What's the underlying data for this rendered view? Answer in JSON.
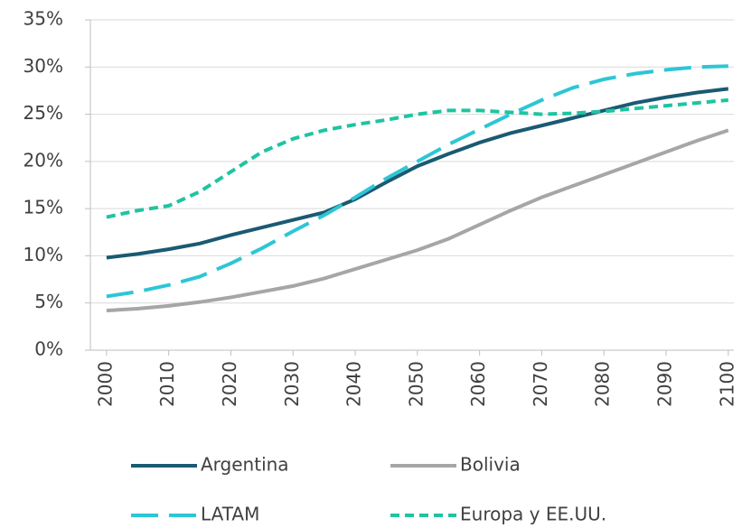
{
  "chart_data": {
    "type": "line",
    "x": [
      2000,
      2005,
      2010,
      2015,
      2020,
      2025,
      2030,
      2035,
      2040,
      2045,
      2050,
      2055,
      2060,
      2065,
      2070,
      2075,
      2080,
      2085,
      2090,
      2095,
      2100
    ],
    "series": [
      {
        "name": "Argentina",
        "color": "#1a5a73",
        "dash": "solid",
        "values": [
          9.8,
          10.2,
          10.7,
          11.3,
          12.2,
          13.0,
          13.8,
          14.6,
          16.0,
          17.8,
          19.5,
          20.8,
          22.0,
          23.0,
          23.8,
          24.6,
          25.4,
          26.2,
          26.8,
          27.3,
          27.7
        ]
      },
      {
        "name": "Bolivia",
        "color": "#a6a6a6",
        "dash": "solid",
        "values": [
          4.2,
          4.4,
          4.7,
          5.1,
          5.6,
          6.2,
          6.8,
          7.6,
          8.6,
          9.6,
          10.6,
          11.8,
          13.3,
          14.8,
          16.2,
          17.4,
          18.6,
          19.8,
          21.0,
          22.2,
          23.3
        ]
      },
      {
        "name": "LATAM",
        "color": "#2dc6d6",
        "dash": "long-dash",
        "values": [
          5.7,
          6.2,
          6.9,
          7.8,
          9.2,
          10.8,
          12.6,
          14.3,
          16.2,
          18.2,
          20.0,
          21.8,
          23.4,
          25.0,
          26.5,
          27.8,
          28.7,
          29.3,
          29.7,
          30.0,
          30.1
        ]
      },
      {
        "name": "Europa y EE.UU.",
        "color": "#1fc4a0",
        "dash": "short-dash",
        "values": [
          14.1,
          14.8,
          15.3,
          16.8,
          18.9,
          21.0,
          22.4,
          23.3,
          23.9,
          24.4,
          25.0,
          25.4,
          25.4,
          25.2,
          25.0,
          25.1,
          25.3,
          25.6,
          25.9,
          26.2,
          26.5
        ]
      }
    ],
    "xlim": [
      1997.4,
      2100.9
    ],
    "xticks": [
      2000,
      2010,
      2020,
      2030,
      2040,
      2050,
      2060,
      2070,
      2080,
      2090,
      2100
    ],
    "ylim": [
      0,
      35
    ],
    "yticks": [
      {
        "value": 0,
        "label": "0%"
      },
      {
        "value": 5,
        "label": "5%"
      },
      {
        "value": 10,
        "label": "10%"
      },
      {
        "value": 15,
        "label": "15%"
      },
      {
        "value": 20,
        "label": "20%"
      },
      {
        "value": 25,
        "label": "25%"
      },
      {
        "value": 30,
        "label": "30%"
      },
      {
        "value": 35,
        "label": "35%"
      }
    ],
    "grid": true,
    "legend": "bottom"
  }
}
